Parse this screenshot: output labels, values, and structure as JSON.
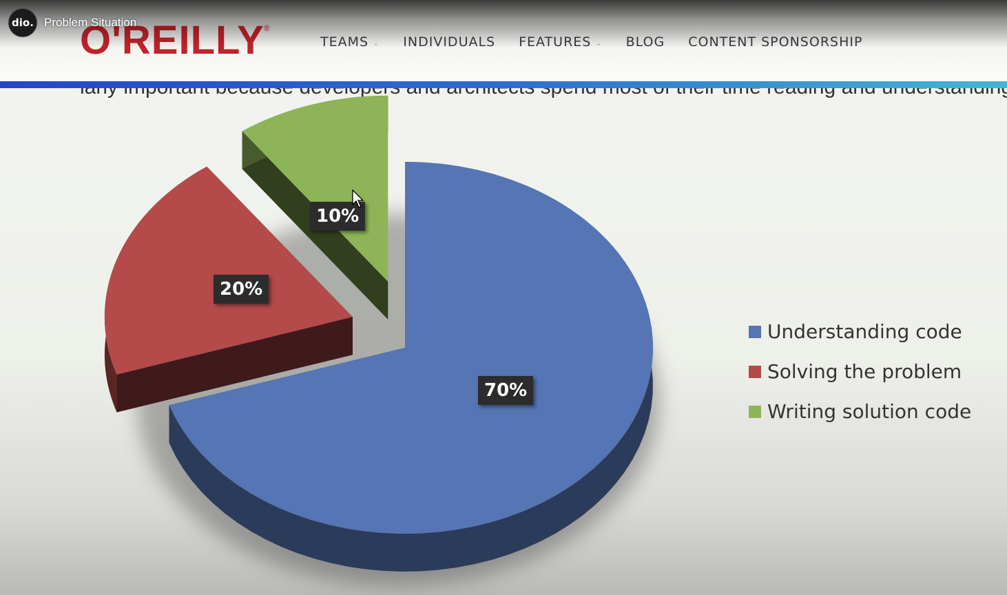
{
  "video": {
    "title": "Problem Situation",
    "channel_avatar_text": "dio."
  },
  "site": {
    "logo": "O'REILLY",
    "logo_mark": "®",
    "nav": [
      {
        "label": "TEAMS",
        "has_dropdown": true
      },
      {
        "label": "INDIVIDUALS",
        "has_dropdown": false
      },
      {
        "label": "FEATURES",
        "has_dropdown": true
      },
      {
        "label": "BLOG",
        "has_dropdown": false
      },
      {
        "label": "CONTENT SPONSORSHIP",
        "has_dropdown": false
      }
    ],
    "accent_color": "#c1232a"
  },
  "cut_off_text": "larly important because developers and architects spend most of their time reading and understanding co",
  "chart_data": {
    "type": "pie",
    "title": "",
    "slices": [
      {
        "label": "Understanding code",
        "value": 70,
        "display": "70%",
        "color": "#5575b4",
        "exploded": false
      },
      {
        "label": "Solving the problem",
        "value": 20,
        "display": "20%",
        "color": "#b44a4a",
        "exploded": true
      },
      {
        "label": "Writing solution code",
        "value": 10,
        "display": "10%",
        "color": "#8db558",
        "exploded": true
      }
    ],
    "legend_position": "right",
    "style": "3d"
  }
}
